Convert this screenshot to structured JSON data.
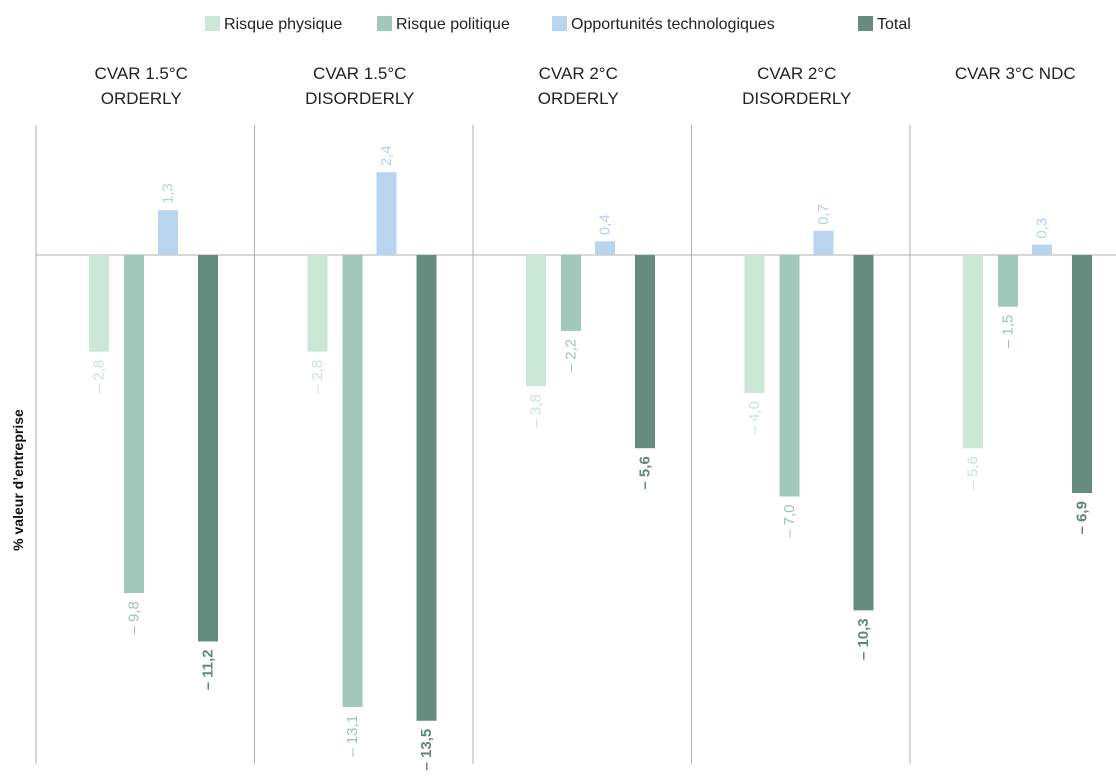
{
  "chart_data": {
    "type": "bar",
    "ylabel": "% valeur d’entreprise",
    "ylim": [
      -14.5,
      3.5
    ],
    "legend_position": "top",
    "grid": false,
    "categories": [
      {
        "line1": "CVAR 1.5°C",
        "line2": "ORDERLY"
      },
      {
        "line1": "CVAR 1.5°C",
        "line2": "DISORDERLY"
      },
      {
        "line1": "CVAR 2°C",
        "line2": "ORDERLY"
      },
      {
        "line1": "CVAR 2°C",
        "line2": "DISORDERLY"
      },
      {
        "line1": "CVAR 3°C NDC",
        "line2": ""
      }
    ],
    "series": [
      {
        "name": "Risque physique",
        "color": "#cbe7d8",
        "label_color": "#c6e4d3",
        "bold": false,
        "values": [
          -2.8,
          -2.8,
          -3.8,
          -4.0,
          -5.6
        ],
        "labels": [
          "– 2,8",
          "– 2,8",
          "– 3,8",
          "– 4,0",
          "– 5,6"
        ]
      },
      {
        "name": "Risque politique",
        "color": "#a2c7bb",
        "label_color": "#9cc3b6",
        "bold": false,
        "values": [
          -9.8,
          -13.1,
          -2.2,
          -7.0,
          -1.5
        ],
        "labels": [
          "– 9,8",
          "– 13,1",
          "– 2,2",
          "– 7,0",
          "– 1,5"
        ]
      },
      {
        "name": "Opportunités technologiques",
        "color": "#b9d4ee",
        "label_color": "#b3d0ec",
        "bold": false,
        "values": [
          1.3,
          2.4,
          0.4,
          0.7,
          0.3
        ],
        "labels": [
          "1,3",
          "2,4",
          "0,4",
          "0,7",
          "0,3"
        ]
      },
      {
        "name": "Total",
        "color": "#658c7f",
        "label_color": "#5f877a",
        "bold": true,
        "values": [
          -11.2,
          -13.5,
          -5.6,
          -10.3,
          -6.9
        ],
        "labels": [
          "– 11,2",
          "– 13,5",
          "– 5,6",
          "– 10,3",
          "– 6,9"
        ]
      }
    ]
  }
}
